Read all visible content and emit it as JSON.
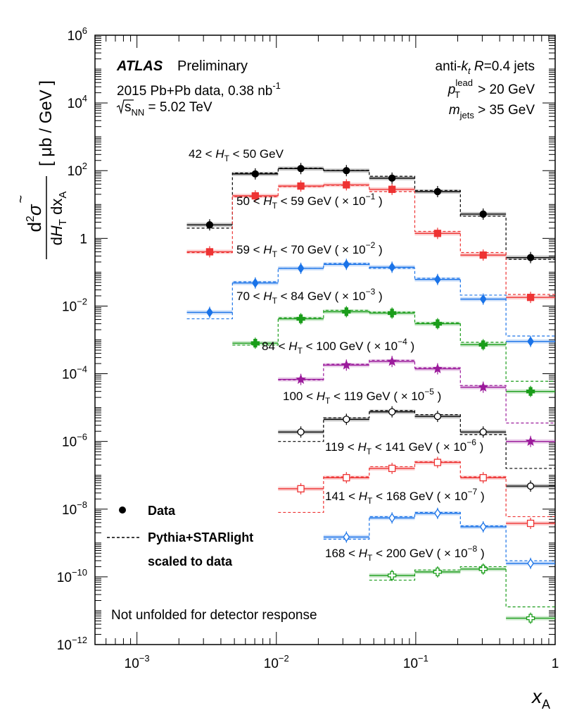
{
  "chart_data": {
    "type": "scatter",
    "x_scale": "log",
    "y_scale": "log",
    "xlim": [
      0.0005,
      1
    ],
    "ylim": [
      1e-12,
      1000000.0
    ],
    "xlabel": "x",
    "xlabel_sub": "A",
    "ylabel": {
      "d2": "d",
      "d2_sup": "2",
      "sigma": "σ",
      "tilde": "~",
      "den_d1": "d",
      "den_H": "H",
      "den_H_sub": "T",
      "den_dx": " dx",
      "den_dx_sub": "A",
      "units": "[ μb / GeV ]"
    },
    "x_ticks": [
      {
        "base": "10",
        "exp": "−3"
      },
      {
        "base": "10",
        "exp": "−2"
      },
      {
        "base": "10",
        "exp": "−1"
      },
      {
        "base": "1",
        "exp": ""
      }
    ],
    "y_ticks": [
      {
        "base": "10",
        "exp": "6"
      },
      {
        "base": "10",
        "exp": "4"
      },
      {
        "base": "10",
        "exp": "2"
      },
      {
        "base": "1",
        "exp": ""
      },
      {
        "base": "10",
        "exp": "−2"
      },
      {
        "base": "10",
        "exp": "−4"
      },
      {
        "base": "10",
        "exp": "−6"
      },
      {
        "base": "10",
        "exp": "−8"
      },
      {
        "base": "10",
        "exp": "−10"
      },
      {
        "base": "10",
        "exp": "−12"
      }
    ],
    "x_bin_edges": [
      0.00228,
      0.00484,
      0.0103,
      0.0218,
      0.0464,
      0.0984,
      0.209,
      0.444,
      1.0
    ],
    "series": [
      {
        "name": "42 < HT < 50 GeV",
        "color": "#000000",
        "marker": "circle",
        "filled": true,
        "label": {
          "pre": "42 < ",
          "sub": "T",
          "post": " < 50 GeV",
          "scale_exp": ""
        },
        "data": [
          2.5,
          80,
          115,
          100,
          60,
          24,
          5.2,
          0.27
        ],
        "mc": [
          2.0,
          85,
          118,
          102,
          68,
          26,
          4.5,
          0.24
        ]
      },
      {
        "name": "50 < HT < 59 GeV ( × 10^-1 )",
        "color": "#ee3333",
        "marker": "square",
        "filled": true,
        "label": {
          "pre": "50 < ",
          "sub": "T",
          "post": " < 59 GeV ( × 10",
          "scale_exp": "−1"
        },
        "data": [
          0.4,
          18,
          35,
          38,
          28,
          1.4,
          0.32,
          0.018
        ],
        "mc": [
          0.38,
          17,
          34,
          37,
          24,
          1.6,
          0.38,
          0.022
        ]
      },
      {
        "name": "59 < HT < 70 GeV ( × 10^-2 )",
        "color": "#1a73e8",
        "marker": "diamond",
        "filled": true,
        "label": {
          "pre": "59 < ",
          "sub": "T",
          "post": " < 70 GeV ( × 10",
          "scale_exp": "−2"
        },
        "data": [
          0.0065,
          0.048,
          0.13,
          0.17,
          0.14,
          0.061,
          0.016,
          0.0009
        ],
        "mc": [
          0.0042,
          0.052,
          0.13,
          0.18,
          0.13,
          0.066,
          0.021,
          0.0013
        ]
      },
      {
        "name": "70 < HT < 84 GeV ( × 10^-3 )",
        "color": "#1a9d1a",
        "marker": "cross",
        "filled": true,
        "label": {
          "pre": "70 < ",
          "sub": "T",
          "post": " < 84 GeV ( × 10",
          "scale_exp": "−3"
        },
        "data": [
          0.0008,
          0.0042,
          0.0068,
          0.0062,
          0.003,
          0.00072,
          3e-05
        ],
        "mc": [
          0.0007,
          0.0045,
          0.0075,
          0.0066,
          0.0032,
          0.00085,
          6e-05
        ]
      },
      {
        "name": "84 < HT < 100 GeV ( × 10^-4 )",
        "color": "#9b1a9b",
        "marker": "star",
        "filled": true,
        "label": {
          "pre": "84 < ",
          "sub": "T",
          "post": " < 100 GeV ( × 10",
          "scale_exp": "−4"
        },
        "data": [
          6.8e-05,
          0.00018,
          0.00023,
          0.00014,
          4e-05,
          1e-06
        ],
        "mc": [
          6.6e-05,
          0.00019,
          0.00025,
          0.00015,
          4.5e-05,
          3.5e-06
        ]
      },
      {
        "name": "100 < HT < 119 GeV ( × 10^-5 )",
        "color": "#000000",
        "marker": "circle",
        "filled": false,
        "label": {
          "pre": "100 < ",
          "sub": "T",
          "post": " < 119 GeV ( × 10",
          "scale_exp": "−5"
        },
        "data": [
          1.9e-06,
          4.5e-06,
          7.5e-06,
          5.5e-06,
          1.9e-06,
          4.8e-08
        ],
        "mc": [
          1e-06,
          5e-06,
          8.2e-06,
          6.2e-06,
          1.6e-06,
          1.6e-07
        ]
      },
      {
        "name": "119 < HT < 141 GeV ( × 10^-6 )",
        "color": "#ee3333",
        "marker": "square",
        "filled": false,
        "label": {
          "pre": "119 < ",
          "sub": "T",
          "post": " < 141 GeV ( × 10",
          "scale_exp": "−6"
        },
        "data": [
          4e-08,
          8.5e-08,
          1.6e-07,
          2.4e-07,
          8.5e-08,
          3.8e-09
        ],
        "mc": [
          8e-09,
          9e-08,
          1.8e-07,
          2.5e-07,
          9e-08,
          6e-09
        ]
      },
      {
        "name": "141 < HT < 168 GeV ( × 10^-7 )",
        "color": "#1a73e8",
        "marker": "diamond",
        "filled": false,
        "label": {
          "pre": "141 < ",
          "sub": "T",
          "post": " < 168 GeV ( × 10",
          "scale_exp": "−7"
        },
        "data": [
          1.5e-09,
          5.5e-09,
          7.5e-09,
          3e-09,
          2.5e-10
        ],
        "mc": [
          1.3e-09,
          6e-09,
          8e-09,
          3.2e-09,
          3e-10
        ]
      },
      {
        "name": "168 < HT < 200 GeV ( × 10^-8 )",
        "color": "#1a9d1a",
        "marker": "cross",
        "filled": false,
        "label": {
          "pre": "168 < ",
          "sub": "T",
          "post": " < 200 GeV ( × 10",
          "scale_exp": "−8"
        },
        "data": [
          1.1e-10,
          1.4e-10,
          1.7e-10,
          6e-12
        ],
        "mc": [
          8e-11,
          1.6e-10,
          2e-10,
          1.3e-11
        ]
      }
    ],
    "legend": [
      {
        "label": "Data",
        "style": "marker"
      },
      {
        "label": "Pythia+STARlight",
        "style": "dashed"
      },
      {
        "label": "scaled to data",
        "style": "none"
      }
    ],
    "legend_position": "bottom-left"
  },
  "annotations": {
    "atlas": "ATLAS",
    "preliminary": "Preliminary",
    "dataset": "2015 Pb+Pb data, 0.38 nb",
    "dataset_exp": "-1",
    "sqrt_s": "s",
    "sqrt_s_sub": "NN",
    "sqrt_s_val": " = 5.02 TeV",
    "jets_pre": "anti-",
    "jets_k": "k",
    "jets_t": "t",
    "jets_R": "R",
    "jets_post": "=0.4 jets",
    "pt_p": "p",
    "pt_sup": "lead",
    "pt_sub": "T",
    "pt_post": " > 20 GeV",
    "m_m": "m",
    "m_sub": "jets",
    "m_post": " > 35 GeV",
    "not_unfolded": "Not unfolded for detector response"
  }
}
